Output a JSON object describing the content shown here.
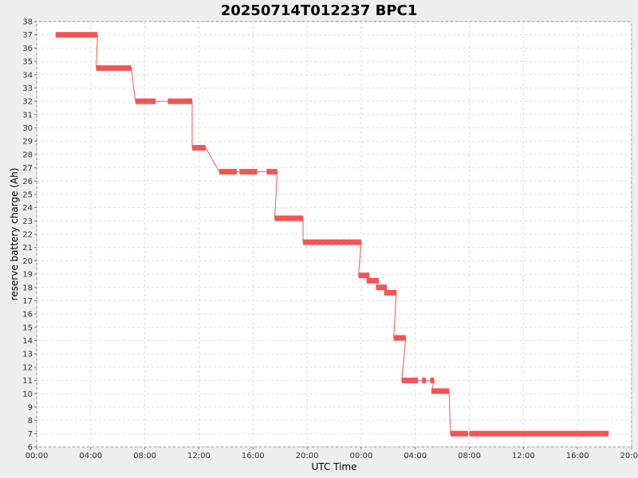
{
  "chart_data": {
    "type": "line",
    "title": "20250714T012237 BPC1",
    "xlabel": "UTC Time",
    "ylabel": "reserve battery charge (Ah)",
    "x_unit": "hours",
    "xlim": [
      0,
      44
    ],
    "ylim": [
      6,
      38
    ],
    "x_ticks": [
      {
        "value": 0,
        "label": "00:00"
      },
      {
        "value": 4,
        "label": "04:00"
      },
      {
        "value": 8,
        "label": "08:00"
      },
      {
        "value": 12,
        "label": "12:00"
      },
      {
        "value": 16,
        "label": "16:00"
      },
      {
        "value": 20,
        "label": "20:00"
      },
      {
        "value": 24,
        "label": "00:00"
      },
      {
        "value": 28,
        "label": "04:00"
      },
      {
        "value": 32,
        "label": "08:00"
      },
      {
        "value": 36,
        "label": "12:00"
      },
      {
        "value": 40,
        "label": "16:00"
      },
      {
        "value": 44,
        "label": "20:00"
      }
    ],
    "y_ticks": [
      6,
      7,
      8,
      9,
      10,
      11,
      12,
      13,
      14,
      15,
      16,
      17,
      18,
      19,
      20,
      21,
      22,
      23,
      24,
      25,
      26,
      27,
      28,
      29,
      30,
      31,
      32,
      33,
      34,
      35,
      36,
      37,
      38
    ],
    "grid": true,
    "legend": "none",
    "series": [
      {
        "color": "#f35454",
        "segments": [
          {
            "start": 1.4,
            "end": 4.5,
            "value": 37.0
          },
          {
            "start": 4.4,
            "end": 7.0,
            "value": 34.5
          },
          {
            "start": 7.3,
            "end": 8.8,
            "value": 32.0
          },
          {
            "start": 9.7,
            "end": 11.5,
            "value": 32.0
          },
          {
            "start": 11.5,
            "end": 12.5,
            "value": 28.5
          },
          {
            "start": 13.5,
            "end": 14.8,
            "value": 26.7
          },
          {
            "start": 15.0,
            "end": 16.3,
            "value": 26.7
          },
          {
            "start": 17.0,
            "end": 17.8,
            "value": 26.7
          },
          {
            "start": 17.6,
            "end": 19.7,
            "value": 23.2
          },
          {
            "start": 19.7,
            "end": 24.0,
            "value": 21.4
          },
          {
            "start": 23.8,
            "end": 24.6,
            "value": 18.9
          },
          {
            "start": 24.4,
            "end": 25.3,
            "value": 18.5
          },
          {
            "start": 25.1,
            "end": 25.9,
            "value": 18.0
          },
          {
            "start": 25.7,
            "end": 26.6,
            "value": 17.6
          },
          {
            "start": 26.4,
            "end": 27.3,
            "value": 14.2
          },
          {
            "start": 27.0,
            "end": 28.2,
            "value": 11.0
          },
          {
            "start": 28.5,
            "end": 28.8,
            "value": 11.0
          },
          {
            "start": 29.1,
            "end": 29.4,
            "value": 11.0
          },
          {
            "start": 29.2,
            "end": 30.5,
            "value": 10.2
          },
          {
            "start": 30.6,
            "end": 31.9,
            "value": 7.0
          },
          {
            "start": 32.0,
            "end": 42.3,
            "value": 7.0
          }
        ]
      }
    ]
  }
}
